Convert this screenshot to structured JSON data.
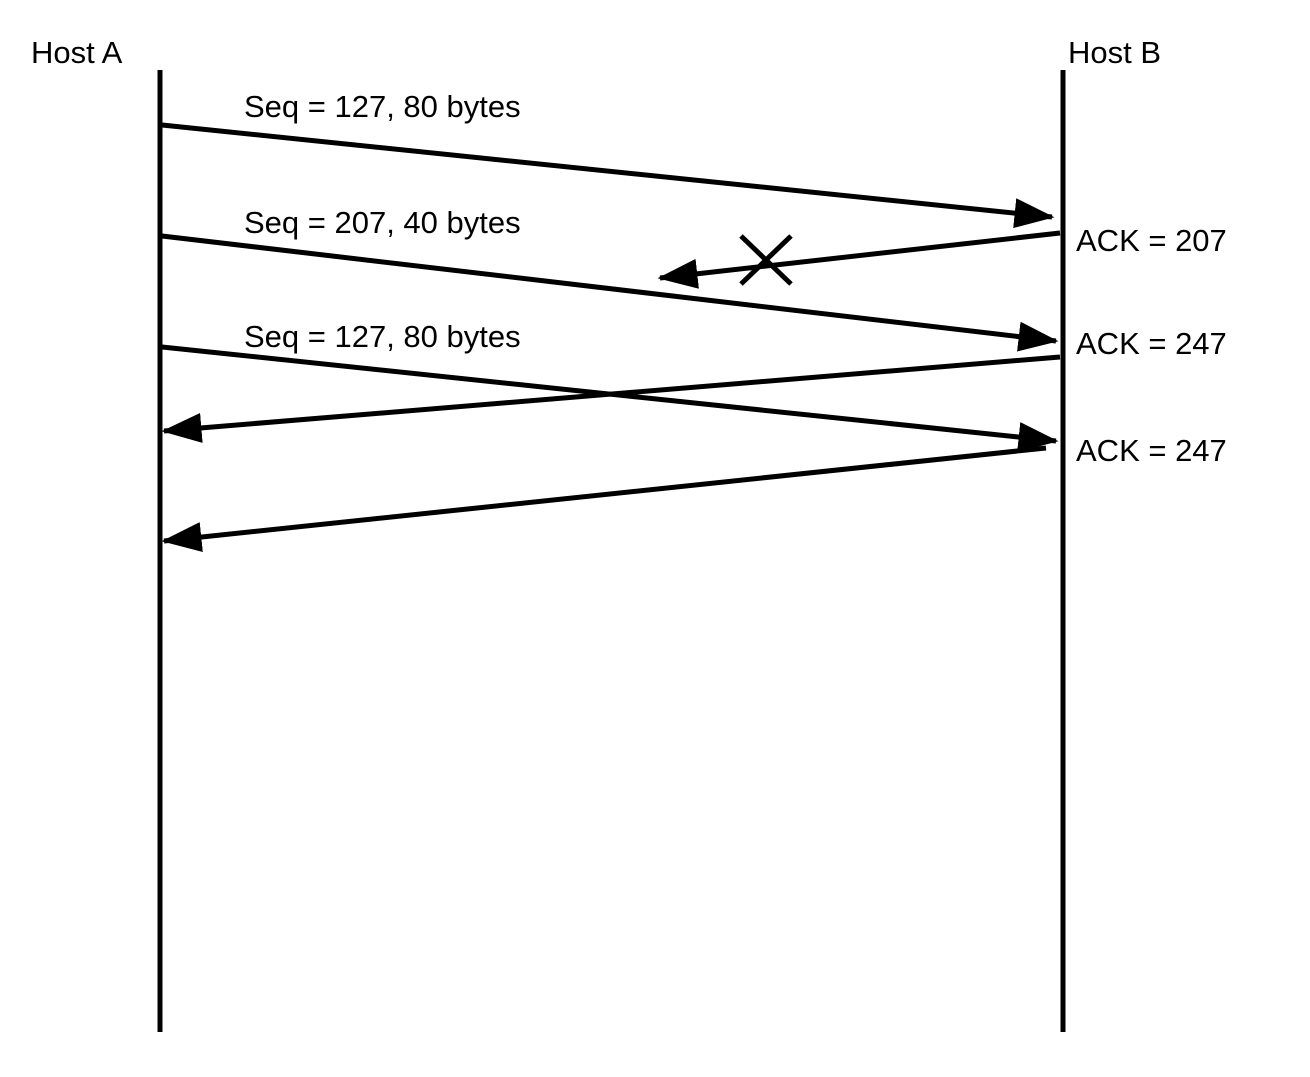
{
  "hosts": {
    "a": "Host A",
    "b": "Host B"
  },
  "segments": [
    {
      "label": "Seq = 127, 80 bytes",
      "direction": "A-to-B"
    },
    {
      "label": "Seq = 207, 40 bytes",
      "direction": "A-to-B"
    },
    {
      "label": "Seq = 127, 80 bytes",
      "direction": "A-to-B"
    }
  ],
  "acks": [
    {
      "label": "ACK = 207",
      "direction": "B-to-A",
      "lost": true
    },
    {
      "label": "ACK = 247",
      "direction": "B-to-A",
      "lost": false
    },
    {
      "label": "ACK = 247",
      "direction": "B-to-A",
      "lost": false
    }
  ],
  "loss_marker": "lost-x-icon",
  "colors": {
    "line": "#000000",
    "background": "#ffffff"
  }
}
